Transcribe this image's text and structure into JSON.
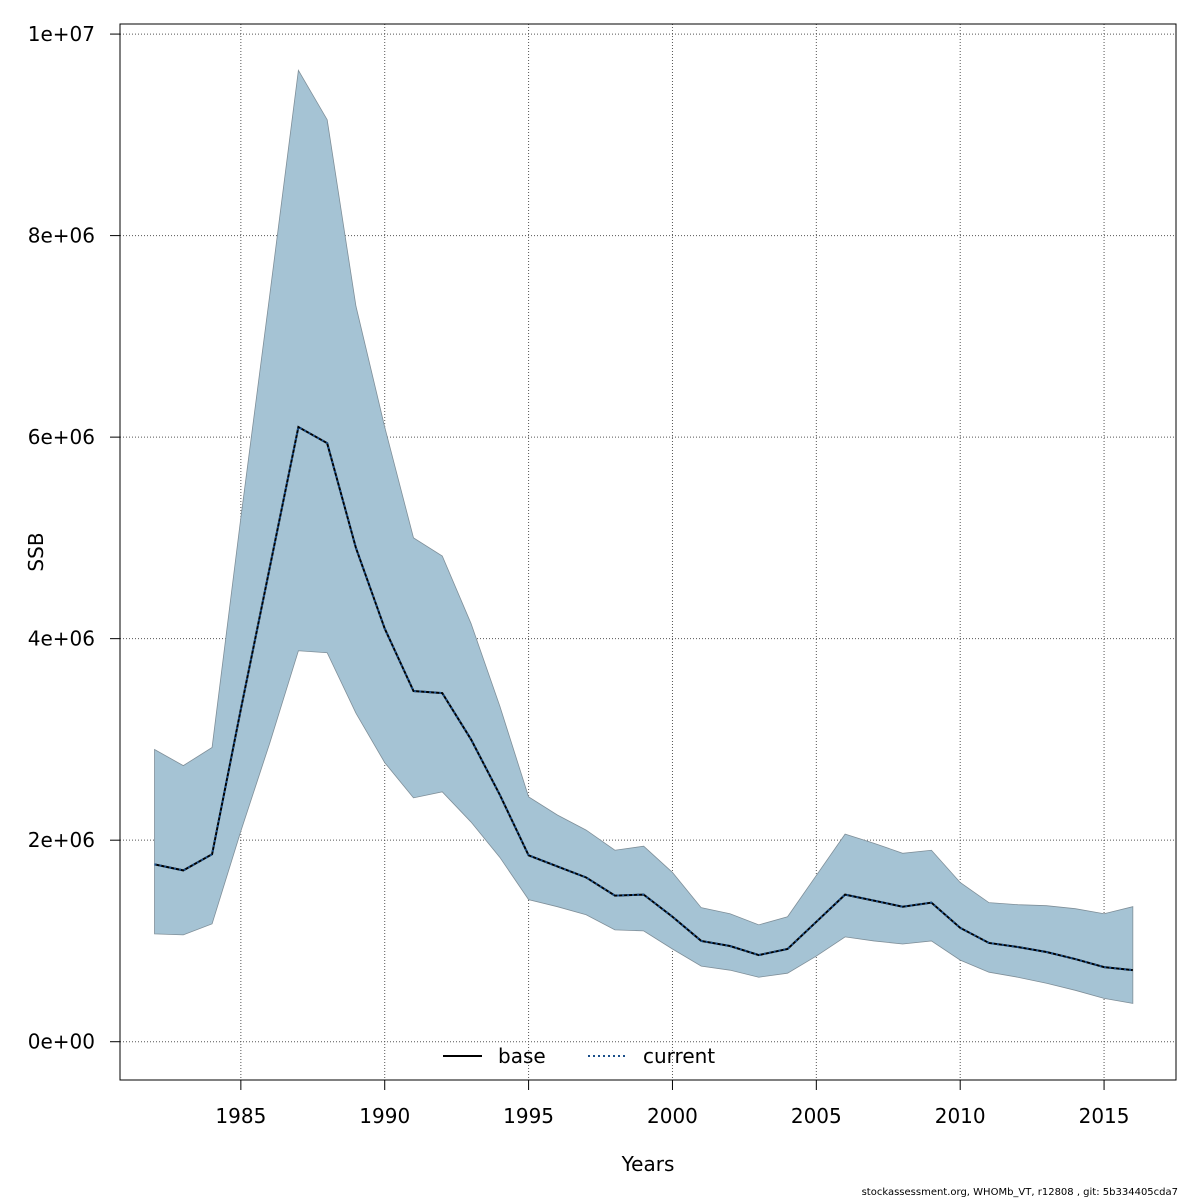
{
  "chart_data": {
    "type": "line",
    "xlabel": "Years",
    "ylabel": "SSB",
    "xlim": [
      1980.8,
      2017.5
    ],
    "ylim": [
      -380000,
      10100000
    ],
    "x_ticks": [
      1985,
      1990,
      1995,
      2000,
      2005,
      2010,
      2015
    ],
    "y_ticks": [
      0,
      2000000,
      4000000,
      6000000,
      8000000,
      10000000
    ],
    "y_tick_labels": [
      "0e+00",
      "2e+06",
      "4e+06",
      "6e+06",
      "8e+06",
      "1e+07"
    ],
    "grid": true,
    "legend": {
      "position": "bottom",
      "entries": [
        "base",
        "current"
      ]
    },
    "colors": {
      "band": "#a5c3d4",
      "band_edge": "#7f8f99",
      "base": "#000000",
      "current": "#1a4f8a"
    },
    "x": [
      1982,
      1983,
      1984,
      1985,
      1986,
      1987,
      1988,
      1989,
      1990,
      1991,
      1992,
      1993,
      1994,
      1995,
      1996,
      1997,
      1998,
      1999,
      2000,
      2001,
      2002,
      2003,
      2004,
      2005,
      2006,
      2007,
      2008,
      2009,
      2010,
      2011,
      2012,
      2013,
      2014,
      2015,
      2016
    ],
    "series": [
      {
        "name": "base",
        "style": "solid",
        "values": [
          1760000,
          1700000,
          1860000,
          3300000,
          4700000,
          6100000,
          5940000,
          4900000,
          4100000,
          3480000,
          3460000,
          3000000,
          2450000,
          1850000,
          1740000,
          1630000,
          1450000,
          1460000,
          1240000,
          1000000,
          950000,
          860000,
          920000,
          1190000,
          1460000,
          1400000,
          1340000,
          1380000,
          1130000,
          980000,
          940000,
          890000,
          820000,
          740000,
          710000
        ]
      },
      {
        "name": "current",
        "style": "dotted",
        "values": [
          1760000,
          1700000,
          1860000,
          3300000,
          4700000,
          6100000,
          5940000,
          4900000,
          4100000,
          3480000,
          3460000,
          3000000,
          2450000,
          1850000,
          1740000,
          1630000,
          1450000,
          1460000,
          1240000,
          1000000,
          950000,
          860000,
          920000,
          1190000,
          1460000,
          1400000,
          1340000,
          1380000,
          1130000,
          980000,
          940000,
          890000,
          820000,
          740000,
          710000
        ]
      }
    ],
    "band_upper": [
      2900000,
      2740000,
      2920000,
      5200000,
      7400000,
      9640000,
      9150000,
      7300000,
      6100000,
      5000000,
      4820000,
      4150000,
      3330000,
      2430000,
      2250000,
      2100000,
      1900000,
      1940000,
      1680000,
      1330000,
      1270000,
      1160000,
      1240000,
      1650000,
      2060000,
      1970000,
      1870000,
      1900000,
      1580000,
      1380000,
      1360000,
      1350000,
      1320000,
      1270000,
      1340000
    ],
    "band_lower": [
      1070000,
      1060000,
      1170000,
      2090000,
      2960000,
      3880000,
      3860000,
      3260000,
      2770000,
      2420000,
      2480000,
      2180000,
      1830000,
      1410000,
      1340000,
      1260000,
      1110000,
      1100000,
      920000,
      750000,
      710000,
      640000,
      680000,
      850000,
      1040000,
      1000000,
      970000,
      1000000,
      810000,
      690000,
      640000,
      580000,
      510000,
      430000,
      380000
    ]
  },
  "footer": "stockassessment.org, WHOMb_VT, r12808 , git: 5b334405cda7"
}
